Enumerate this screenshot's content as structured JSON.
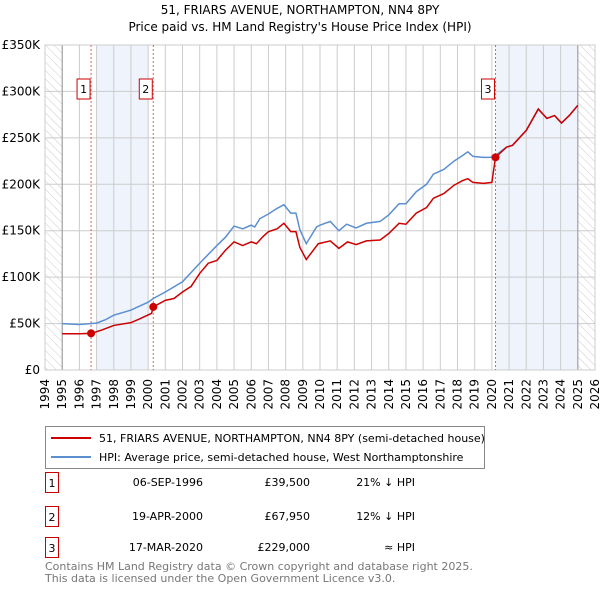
{
  "chart_data": {
    "type": "line",
    "title": "51, FRIARS AVENUE, NORTHAMPTON, NN4 8PY",
    "subtitle": "Price paid vs. HM Land Registry's House Price Index (HPI)",
    "xlim": [
      1994,
      2026
    ],
    "ylim": [
      0,
      350000
    ],
    "x_ticks": [
      "1994",
      "1995",
      "1996",
      "1997",
      "1998",
      "1999",
      "2000",
      "2001",
      "2002",
      "2003",
      "2004",
      "2005",
      "2006",
      "2007",
      "2008",
      "2009",
      "2010",
      "2011",
      "2012",
      "2013",
      "2014",
      "2015",
      "2016",
      "2017",
      "2018",
      "2019",
      "2020",
      "2021",
      "2022",
      "2023",
      "2024",
      "2025",
      "2026"
    ],
    "y_ticks": [
      {
        "v": 0,
        "label": "£0"
      },
      {
        "v": 50000,
        "label": "£50K"
      },
      {
        "v": 100000,
        "label": "£100K"
      },
      {
        "v": 150000,
        "label": "£150K"
      },
      {
        "v": 200000,
        "label": "£200K"
      },
      {
        "v": 250000,
        "label": "£250K"
      },
      {
        "v": 300000,
        "label": "£300K"
      },
      {
        "v": 350000,
        "label": "£350K"
      }
    ],
    "grid": true,
    "series": [
      {
        "name": "51, FRIARS AVENUE, NORTHAMPTON, NN4 8PY (semi-detached house)",
        "color": "#cc0000",
        "points": [
          [
            1995,
            39
          ],
          [
            1996,
            39
          ],
          [
            1996.68,
            39.5
          ],
          [
            1997.3,
            43
          ],
          [
            1998,
            48
          ],
          [
            1999,
            51
          ],
          [
            1999.5,
            55
          ],
          [
            2000.2,
            61
          ],
          [
            2000.3,
            68
          ],
          [
            2001,
            75
          ],
          [
            2001.5,
            77
          ],
          [
            2002,
            84
          ],
          [
            2002.5,
            90
          ],
          [
            2003,
            104
          ],
          [
            2003.5,
            115
          ],
          [
            2004,
            118
          ],
          [
            2004.5,
            129
          ],
          [
            2005,
            138
          ],
          [
            2005.5,
            134
          ],
          [
            2006,
            138
          ],
          [
            2006.3,
            136
          ],
          [
            2006.7,
            144
          ],
          [
            2007,
            149
          ],
          [
            2007.5,
            152
          ],
          [
            2007.9,
            158
          ],
          [
            2008.3,
            149
          ],
          [
            2008.6,
            149
          ],
          [
            2008.83,
            132
          ],
          [
            2009.2,
            119
          ],
          [
            2009.9,
            136
          ],
          [
            2010.6,
            139
          ],
          [
            2011.1,
            131
          ],
          [
            2011.6,
            138
          ],
          [
            2012.1,
            135
          ],
          [
            2012.7,
            139
          ],
          [
            2013.5,
            140
          ],
          [
            2014,
            147
          ],
          [
            2014.6,
            158
          ],
          [
            2015,
            157
          ],
          [
            2015.6,
            169
          ],
          [
            2016.2,
            175
          ],
          [
            2016.6,
            185
          ],
          [
            2017.2,
            190
          ],
          [
            2017.8,
            199
          ],
          [
            2018.3,
            204
          ],
          [
            2018.6,
            206
          ],
          [
            2018.9,
            202
          ],
          [
            2019.5,
            201
          ],
          [
            2020.0,
            202
          ],
          [
            2020.21,
            229
          ],
          [
            2020.85,
            240
          ],
          [
            2021.2,
            242
          ],
          [
            2022,
            258
          ],
          [
            2022.7,
            281
          ],
          [
            2023.2,
            271
          ],
          [
            2023.65,
            274
          ],
          [
            2024.05,
            266
          ],
          [
            2024.5,
            274
          ],
          [
            2025,
            285
          ]
        ]
      },
      {
        "name": "HPI: Average price, semi-detached house, West Northamptonshire",
        "color": "#5b8fd0",
        "points": [
          [
            1995,
            50
          ],
          [
            1996,
            49
          ],
          [
            1997,
            50.5
          ],
          [
            1997.5,
            54
          ],
          [
            1998,
            59
          ],
          [
            1999,
            64.5
          ],
          [
            2000,
            73
          ],
          [
            2000.3,
            77
          ],
          [
            2001,
            84
          ],
          [
            2002,
            95
          ],
          [
            2003,
            115
          ],
          [
            2004,
            134
          ],
          [
            2004.5,
            143
          ],
          [
            2005,
            155
          ],
          [
            2005.5,
            152
          ],
          [
            2006,
            156
          ],
          [
            2006.2,
            154
          ],
          [
            2006.5,
            163
          ],
          [
            2007,
            168
          ],
          [
            2007.5,
            174
          ],
          [
            2007.9,
            178
          ],
          [
            2008.3,
            169
          ],
          [
            2008.6,
            169
          ],
          [
            2008.83,
            151
          ],
          [
            2009.2,
            136
          ],
          [
            2009.8,
            154
          ],
          [
            2010,
            156
          ],
          [
            2010.6,
            160
          ],
          [
            2011.1,
            150
          ],
          [
            2011.55,
            157
          ],
          [
            2012.1,
            153
          ],
          [
            2012.7,
            158
          ],
          [
            2013.5,
            160
          ],
          [
            2014,
            167
          ],
          [
            2014.6,
            179
          ],
          [
            2015,
            179
          ],
          [
            2015.6,
            192
          ],
          [
            2016.2,
            200
          ],
          [
            2016.6,
            211
          ],
          [
            2017.2,
            216
          ],
          [
            2017.8,
            225
          ],
          [
            2018.3,
            231
          ],
          [
            2018.6,
            235
          ],
          [
            2018.9,
            230
          ],
          [
            2019.5,
            229
          ],
          [
            2019.9,
            229
          ],
          [
            2020.13,
            230
          ],
          [
            2020.85,
            240
          ],
          [
            2021.2,
            242
          ],
          [
            2022,
            258
          ],
          [
            2022.7,
            281
          ],
          [
            2023.2,
            271
          ],
          [
            2023.65,
            274
          ],
          [
            2024.05,
            266
          ],
          [
            2024.5,
            274
          ],
          [
            2025,
            285
          ]
        ]
      }
    ],
    "value_unit": "thousand GBP",
    "shaded_ranges": [
      [
        1997,
        2000
      ],
      [
        2020.21,
        2025
      ]
    ],
    "hatched_ranges": [
      [
        1994,
        1995
      ],
      [
        2025,
        2026
      ]
    ],
    "sales": [
      {
        "label": "1",
        "year": 1996.68,
        "value": 39.5,
        "date": "06-SEP-1996",
        "price": "£39,500",
        "relation": "21% ↓ HPI"
      },
      {
        "label": "2",
        "year": 2000.3,
        "value": 67.95,
        "date": "19-APR-2000",
        "price": "£67,950",
        "relation": "12% ↓ HPI"
      },
      {
        "label": "3",
        "year": 2020.21,
        "value": 229,
        "date": "17-MAR-2020",
        "price": "£229,000",
        "relation": "≈ HPI"
      }
    ]
  },
  "footer": {
    "line1": "Contains HM Land Registry data © Crown copyright and database right 2025.",
    "line2": "This data is licensed under the Open Government Licence v3.0."
  }
}
